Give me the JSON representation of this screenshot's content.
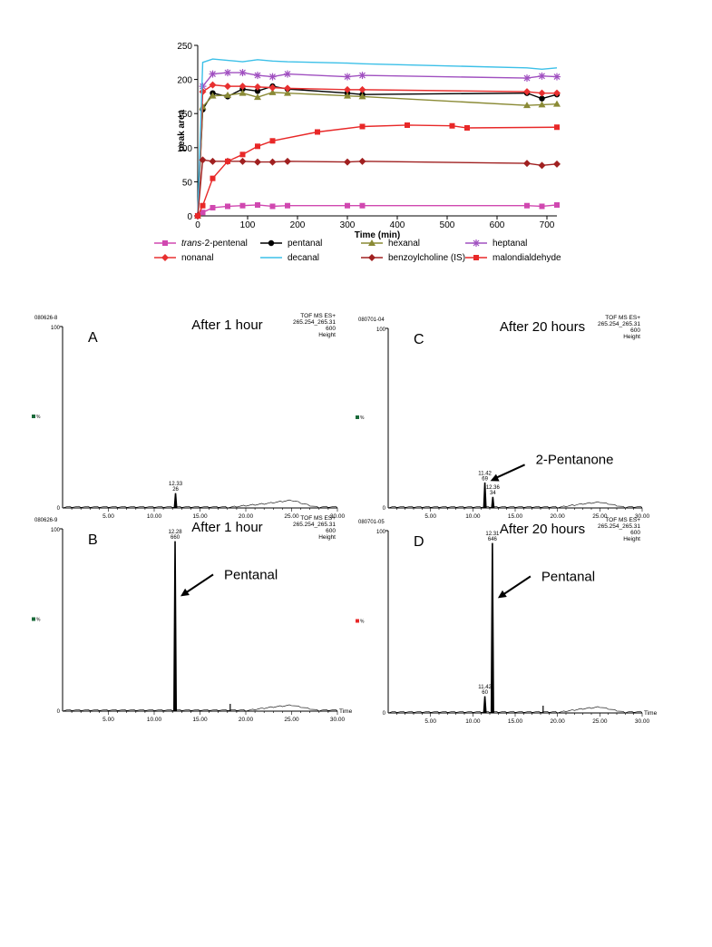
{
  "chart_data": [
    {
      "type": "line",
      "xlabel": "Time (min)",
      "ylabel": "peak area",
      "xlim": [
        0,
        720
      ],
      "ylim": [
        0,
        250
      ],
      "xticks": [
        "0",
        "100",
        "200",
        "300",
        "400",
        "500",
        "600",
        "700"
      ],
      "yticks": [
        "0",
        "50",
        "100",
        "150",
        "200",
        "250"
      ],
      "legend_position": "bottom",
      "series": [
        {
          "name_prefix": "trans",
          "name": "-2-pentenal",
          "color": "#d048b0",
          "marker": "square",
          "x": [
            0,
            10,
            30,
            60,
            90,
            120,
            150,
            180,
            300,
            330,
            660,
            690,
            720
          ],
          "y": [
            0,
            5,
            12,
            14,
            15,
            16,
            14,
            15,
            15,
            15,
            15,
            14,
            16
          ]
        },
        {
          "name": "pentanal",
          "color": "#000000",
          "marker": "circle",
          "x": [
            0,
            10,
            30,
            60,
            90,
            120,
            150,
            180,
            300,
            330,
            660,
            690,
            720
          ],
          "y": [
            0,
            156,
            180,
            175,
            186,
            183,
            190,
            186,
            180,
            178,
            180,
            172,
            178
          ]
        },
        {
          "name": "hexanal",
          "color": "#8a8a35",
          "marker": "triangle",
          "x": [
            0,
            10,
            30,
            60,
            90,
            120,
            150,
            180,
            300,
            330,
            660,
            690,
            720
          ],
          "y": [
            0,
            160,
            176,
            177,
            180,
            174,
            181,
            180,
            176,
            175,
            162,
            163,
            164
          ]
        },
        {
          "name": "heptanal",
          "color": "#a050c0",
          "marker": "star",
          "x": [
            0,
            10,
            30,
            60,
            90,
            120,
            150,
            180,
            300,
            330,
            660,
            690,
            720
          ],
          "y": [
            0,
            190,
            208,
            210,
            210,
            206,
            204,
            208,
            204,
            206,
            202,
            205,
            204
          ]
        },
        {
          "name": "nonanal",
          "color": "#e83030",
          "marker": "diamond",
          "x": [
            0,
            10,
            30,
            60,
            90,
            120,
            150,
            180,
            300,
            330,
            660,
            690,
            720
          ],
          "y": [
            0,
            182,
            192,
            190,
            190,
            189,
            188,
            187,
            185,
            185,
            182,
            180,
            180
          ]
        },
        {
          "name": "decanal",
          "color": "#3cc0e8",
          "marker": "none",
          "x": [
            0,
            10,
            30,
            60,
            90,
            120,
            150,
            180,
            300,
            330,
            660,
            690,
            720
          ],
          "y": [
            0,
            225,
            230,
            228,
            226,
            229,
            227,
            226,
            224,
            223,
            217,
            215,
            217
          ]
        },
        {
          "name": "benzoylcholine (IS)",
          "color": "#a02020",
          "marker": "diamond",
          "x": [
            0,
            10,
            30,
            60,
            90,
            120,
            150,
            180,
            300,
            330,
            660,
            690,
            720
          ],
          "y": [
            0,
            82,
            80,
            80,
            80,
            79,
            79,
            80,
            79,
            80,
            77,
            74,
            76
          ]
        },
        {
          "name": "malondialdehyde",
          "color": "#e82828",
          "marker": "square",
          "x": [
            0,
            10,
            30,
            60,
            90,
            120,
            150,
            240,
            330,
            420,
            510,
            540,
            720
          ],
          "y": [
            0,
            15,
            55,
            80,
            90,
            102,
            110,
            123,
            131,
            133,
            132,
            129,
            130
          ]
        }
      ]
    },
    {
      "type": "line",
      "panel": "A",
      "title": "After 1 hour",
      "file_id": "080626-8",
      "trace_info": [
        "TOF MS ES+",
        "265.254_265.31",
        "600",
        "Height"
      ],
      "xlim": [
        0,
        30
      ],
      "xticks": [
        "5.00",
        "10.00",
        "15.00",
        "20.00",
        "25.00",
        "30.00"
      ],
      "y_top": "100",
      "y_zero": "0",
      "side_label": "%",
      "peaks": [
        {
          "label": "12.33",
          "sub": "26",
          "x": 12.33,
          "height": 8
        }
      ],
      "baseline_hump": [
        [
          18,
          0
        ],
        [
          22,
          2
        ],
        [
          25,
          4
        ],
        [
          27,
          1
        ],
        [
          28,
          0
        ]
      ],
      "annotations": []
    },
    {
      "type": "line",
      "panel": "B",
      "title": "After 1 hour",
      "file_id": "080626-9",
      "trace_info": [
        "TOF MS ES+",
        "265.254_265.31",
        "600",
        "Height"
      ],
      "xlim": [
        0,
        30
      ],
      "xticks": [
        "5.00",
        "10.00",
        "15.00",
        "20.00",
        "25.00",
        "30.00"
      ],
      "x_axis_word": "Time",
      "y_top": "100",
      "y_zero": "0",
      "side_label": "%",
      "peaks": [
        {
          "label": "12.28",
          "sub": "660",
          "x": 12.28,
          "height": 93
        }
      ],
      "spikes": [
        {
          "x": 18.3,
          "height": 4
        }
      ],
      "baseline_hump": [
        [
          20,
          0
        ],
        [
          23,
          2
        ],
        [
          25,
          3
        ],
        [
          27,
          1
        ],
        [
          28,
          0
        ]
      ],
      "annotations": [
        {
          "text": "Pentanal",
          "target_x": 12.28,
          "target_h": 63
        }
      ]
    },
    {
      "type": "line",
      "panel": "C",
      "title": "After 20 hours",
      "file_id": "080701-04",
      "trace_info": [
        "TOF MS ES+",
        "265.254_265.31",
        "600",
        "Height"
      ],
      "xlim": [
        0,
        30
      ],
      "xticks": [
        "5.00",
        "10.00",
        "15.00",
        "20.00",
        "25.00",
        "30.00"
      ],
      "y_top": "100",
      "y_zero": "0",
      "side_label": "%",
      "peaks": [
        {
          "label": "11.42",
          "sub": "69",
          "x": 11.42,
          "height": 14
        },
        {
          "label": "12.36",
          "sub": "34",
          "x": 12.36,
          "height": 6
        }
      ],
      "baseline_hump": [
        [
          20,
          0
        ],
        [
          23,
          2
        ],
        [
          25,
          3
        ],
        [
          27,
          1
        ],
        [
          28,
          0
        ]
      ],
      "annotations": [
        {
          "text": "2-Pentanone",
          "target_x": 11.42,
          "target_h": 15
        }
      ]
    },
    {
      "type": "line",
      "panel": "D",
      "title": "After 20 hours",
      "file_id": "080701-05",
      "trace_info": [
        "TOF MS ES+",
        "265.254_265.31",
        "600",
        "Height"
      ],
      "xlim": [
        0,
        30
      ],
      "xticks": [
        "5.00",
        "10.00",
        "15.00",
        "20.00",
        "25.00",
        "30.00"
      ],
      "x_axis_word": "Time",
      "y_top": "100",
      "y_zero": "0",
      "side_label": "%",
      "peaks": [
        {
          "label": "11.42",
          "sub": "60",
          "x": 11.42,
          "height": 9
        },
        {
          "label": "12.31",
          "sub": "646",
          "x": 12.31,
          "height": 93
        }
      ],
      "spikes": [
        {
          "x": 18.3,
          "height": 4
        }
      ],
      "baseline_hump": [
        [
          20,
          0
        ],
        [
          23,
          2
        ],
        [
          25,
          3
        ],
        [
          27,
          1
        ],
        [
          28,
          0
        ]
      ],
      "annotations": [
        {
          "text": "Pentanal",
          "target_x": 12.31,
          "target_h": 63
        }
      ]
    }
  ]
}
